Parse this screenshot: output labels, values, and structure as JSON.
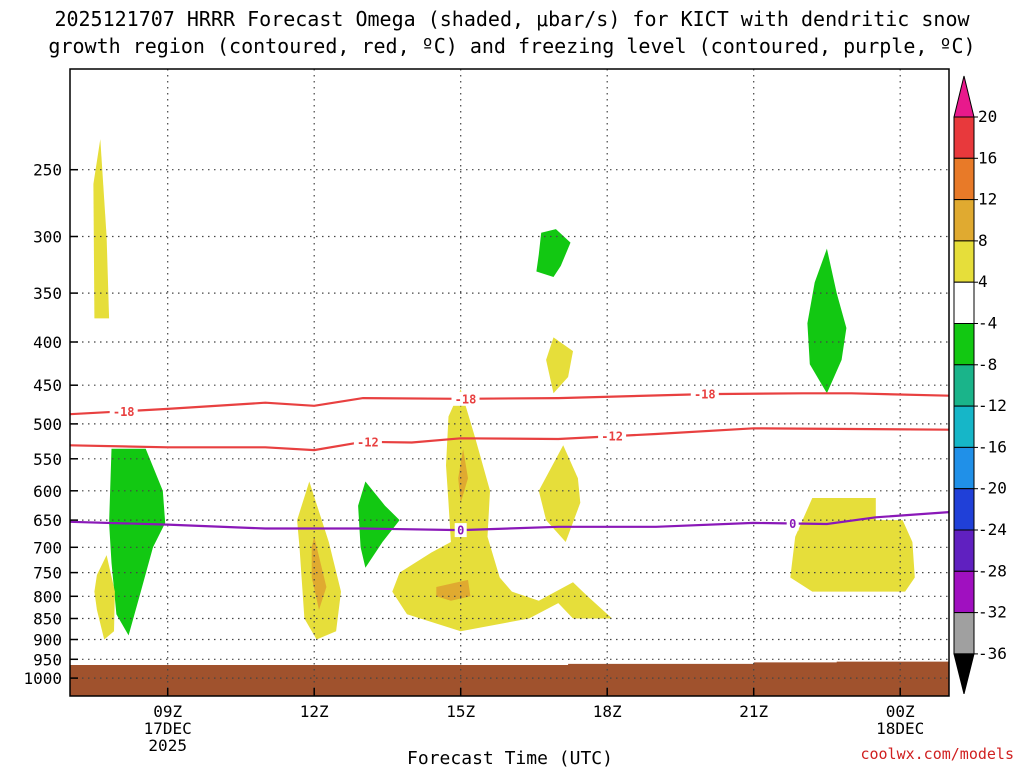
{
  "chart_data": {
    "type": "time-height cross section (shaded + contours)",
    "title_line1": "2025121707 HRRR Forecast Omega (shaded, μbar/s) for KICT with dendritic snow",
    "title_line2": "growth region (contoured, red, ºC) and freezing level (contoured, purple, ºC)",
    "xlabel": "Forecast Time (UTC)",
    "credit": "coolwx.com/models",
    "x_axis": {
      "range_hours_after_07Z": [
        0,
        18
      ],
      "ticks": [
        {
          "hour": 2,
          "line1": "09Z",
          "line2": "17DEC",
          "line3": "2025"
        },
        {
          "hour": 5,
          "line1": "12Z",
          "line2": "",
          "line3": ""
        },
        {
          "hour": 8,
          "line1": "15Z",
          "line2": "",
          "line3": ""
        },
        {
          "hour": 11,
          "line1": "18Z",
          "line2": "",
          "line3": ""
        },
        {
          "hour": 14,
          "line1": "21Z",
          "line2": "",
          "line3": ""
        },
        {
          "hour": 17,
          "line1": "00Z",
          "line2": "18DEC",
          "line3": ""
        }
      ]
    },
    "y_axis": {
      "units": "hPa",
      "range": [
        190,
        1050
      ],
      "levels": [
        250,
        300,
        350,
        400,
        450,
        500,
        550,
        600,
        650,
        700,
        750,
        800,
        850,
        900,
        950,
        1000
      ]
    },
    "colorbar": {
      "labels": [
        "20",
        "16",
        "12",
        "8",
        "4",
        "-4",
        "-8",
        "-12",
        "-16",
        "-20",
        "-24",
        "-28",
        "-32",
        "-36"
      ],
      "colors": [
        "#e8198c",
        "#e8393c",
        "#e87a28",
        "#e0aa30",
        "#e6de3a",
        "#ffffff",
        "#12c812",
        "#1ab48a",
        "#16b6c8",
        "#2090e8",
        "#2040d8",
        "#6020c0",
        "#a010c0",
        "#a0a0a0",
        "#000000"
      ]
    },
    "omega_regions": [
      {
        "value_range": "4 to 8",
        "color": "#e6de3a",
        "points": [
          [
            0.5,
            375
          ],
          [
            0.48,
            260
          ],
          [
            0.62,
            230
          ],
          [
            0.75,
            300
          ],
          [
            0.8,
            375
          ]
        ]
      },
      {
        "value_range": "-4 to -8",
        "color": "#12c812",
        "points": [
          [
            0.85,
            535
          ],
          [
            1.55,
            535
          ],
          [
            1.9,
            600
          ],
          [
            1.95,
            655
          ],
          [
            1.7,
            700
          ],
          [
            1.45,
            790
          ],
          [
            1.2,
            890
          ],
          [
            0.95,
            840
          ],
          [
            0.85,
            730
          ],
          [
            0.8,
            655
          ]
        ]
      },
      {
        "value_range": "4 to 8",
        "color": "#e6de3a",
        "points": [
          [
            0.55,
            755
          ],
          [
            0.75,
            715
          ],
          [
            0.92,
            790
          ],
          [
            0.9,
            880
          ],
          [
            0.7,
            900
          ],
          [
            0.55,
            830
          ],
          [
            0.5,
            790
          ]
        ]
      },
      {
        "value_range": "4 to 8",
        "color": "#e6de3a",
        "points": [
          [
            4.9,
            585
          ],
          [
            5.3,
            690
          ],
          [
            5.55,
            790
          ],
          [
            5.45,
            880
          ],
          [
            5.05,
            900
          ],
          [
            4.8,
            850
          ],
          [
            4.7,
            700
          ],
          [
            4.65,
            650
          ]
        ]
      },
      {
        "value_range": "8 to 12",
        "color": "#e0aa30",
        "points": [
          [
            5.0,
            680
          ],
          [
            5.25,
            780
          ],
          [
            5.1,
            830
          ],
          [
            4.95,
            760
          ],
          [
            4.95,
            700
          ]
        ]
      },
      {
        "value_range": "-4 to -8",
        "color": "#12c812",
        "points": [
          [
            6.05,
            585
          ],
          [
            6.45,
            625
          ],
          [
            6.75,
            650
          ],
          [
            6.4,
            690
          ],
          [
            6.05,
            740
          ],
          [
            5.95,
            700
          ],
          [
            5.9,
            625
          ]
        ]
      },
      {
        "value_range": "4 to 8",
        "color": "#e6de3a",
        "points": [
          [
            8.0,
            455
          ],
          [
            8.3,
            520
          ],
          [
            8.6,
            600
          ],
          [
            8.55,
            680
          ],
          [
            8.8,
            760
          ],
          [
            9.05,
            790
          ],
          [
            9.6,
            810
          ],
          [
            10.3,
            770
          ],
          [
            10.6,
            800
          ],
          [
            11.1,
            850
          ],
          [
            10.3,
            850
          ],
          [
            10.0,
            815
          ],
          [
            9.4,
            850
          ],
          [
            8.0,
            880
          ],
          [
            6.9,
            840
          ],
          [
            6.6,
            790
          ],
          [
            6.75,
            750
          ],
          [
            7.4,
            710
          ],
          [
            7.8,
            690
          ],
          [
            7.75,
            620
          ],
          [
            7.7,
            560
          ],
          [
            7.75,
            490
          ]
        ]
      },
      {
        "value_range": "8 to 12",
        "color": "#e0aa30",
        "points": [
          [
            8.05,
            535
          ],
          [
            8.15,
            580
          ],
          [
            8.0,
            620
          ],
          [
            7.95,
            580
          ]
        ]
      },
      {
        "value_range": "8 to 12",
        "color": "#e0aa30",
        "points": [
          [
            7.5,
            780
          ],
          [
            8.15,
            765
          ],
          [
            8.2,
            800
          ],
          [
            7.8,
            810
          ],
          [
            7.5,
            800
          ]
        ]
      },
      {
        "value_range": "4 to 8",
        "color": "#e6de3a",
        "points": [
          [
            10.1,
            530
          ],
          [
            10.4,
            580
          ],
          [
            10.45,
            620
          ],
          [
            10.15,
            690
          ],
          [
            9.75,
            650
          ],
          [
            9.6,
            600
          ]
        ]
      },
      {
        "value_range": "4 to 8",
        "color": "#e6de3a",
        "points": [
          [
            9.9,
            395
          ],
          [
            10.3,
            410
          ],
          [
            10.2,
            440
          ],
          [
            9.9,
            460
          ],
          [
            9.75,
            420
          ]
        ]
      },
      {
        "value_range": "-4 to -8",
        "color": "#12c812",
        "points": [
          [
            9.65,
            297
          ],
          [
            9.95,
            294
          ],
          [
            10.25,
            305
          ],
          [
            10.05,
            325
          ],
          [
            9.9,
            335
          ],
          [
            9.55,
            330
          ],
          [
            9.6,
            315
          ]
        ]
      },
      {
        "value_range": "-4 to -8",
        "color": "#12c812",
        "points": [
          [
            15.5,
            310
          ],
          [
            15.7,
            350
          ],
          [
            15.9,
            385
          ],
          [
            15.8,
            420
          ],
          [
            15.5,
            460
          ],
          [
            15.15,
            425
          ],
          [
            15.1,
            380
          ],
          [
            15.25,
            340
          ]
        ]
      },
      {
        "value_range": "4 to 8",
        "color": "#e6de3a",
        "points": [
          [
            15.2,
            612
          ],
          [
            16.5,
            612
          ],
          [
            16.5,
            650
          ],
          [
            17.05,
            650
          ],
          [
            17.25,
            690
          ],
          [
            17.3,
            760
          ],
          [
            17.1,
            790
          ],
          [
            16.5,
            790
          ],
          [
            15.2,
            790
          ],
          [
            14.75,
            760
          ],
          [
            14.85,
            680
          ]
        ]
      }
    ],
    "terrain": {
      "color": "#a0522d",
      "surface_pressure_hPa": [
        [
          0,
          965
        ],
        [
          10.2,
          965
        ],
        [
          10.2,
          962
        ],
        [
          14.0,
          962
        ],
        [
          14.0,
          958
        ],
        [
          15.7,
          958
        ],
        [
          15.7,
          956
        ],
        [
          18.0,
          956
        ]
      ]
    },
    "contours": [
      {
        "name": "dgz-minus18",
        "color": "#e84040",
        "label": "-18",
        "label_hours": [
          1.1,
          8.1,
          13.0
        ],
        "points": [
          [
            0,
            487
          ],
          [
            2,
            480
          ],
          [
            4,
            472
          ],
          [
            5,
            476
          ],
          [
            6,
            466
          ],
          [
            8,
            467
          ],
          [
            10,
            466
          ],
          [
            13,
            461
          ],
          [
            15,
            460
          ],
          [
            16,
            460
          ],
          [
            18,
            463
          ]
        ]
      },
      {
        "name": "dgz-minus12",
        "color": "#e84040",
        "label": "-12",
        "label_hours": [
          6.1,
          11.1
        ],
        "points": [
          [
            0,
            530
          ],
          [
            2,
            533
          ],
          [
            4,
            533
          ],
          [
            5,
            537
          ],
          [
            6,
            525
          ],
          [
            7,
            526
          ],
          [
            8,
            520
          ],
          [
            10,
            521
          ],
          [
            12,
            514
          ],
          [
            14,
            506
          ],
          [
            16,
            507
          ],
          [
            18,
            508
          ]
        ]
      },
      {
        "name": "freezing-level-0",
        "color": "#8a18b8",
        "label": "0",
        "label_hours": [
          8.0,
          14.8
        ],
        "points": [
          [
            0,
            653
          ],
          [
            2,
            658
          ],
          [
            4,
            665
          ],
          [
            6,
            665
          ],
          [
            8,
            668
          ],
          [
            10,
            662
          ],
          [
            12,
            662
          ],
          [
            14,
            655
          ],
          [
            15.5,
            657
          ],
          [
            16.5,
            645
          ],
          [
            18,
            636
          ]
        ]
      }
    ]
  }
}
